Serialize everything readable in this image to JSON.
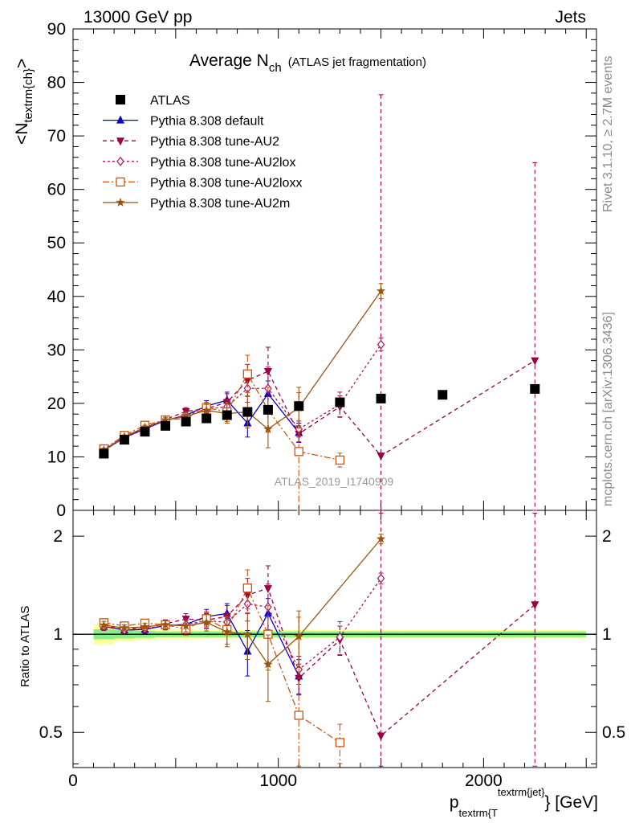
{
  "header": {
    "left": "13000 GeV pp",
    "right": "Jets"
  },
  "side_labels": {
    "rivet": "Rivet 3.1.10, ≥ 2.7M events",
    "mcplots": "mcplots.cern.ch [arXiv:1306.3436]"
  },
  "watermark": "ATLAS_2019_I1740909",
  "title": {
    "main": "Average N",
    "sub": "ch",
    "suffix": "(ATLAS jet fragmentation)"
  },
  "y_label": {
    "main": "<N",
    "sub": "textrm{ch}",
    "close": ">"
  },
  "ratio_label": "Ratio to ATLAS",
  "x_label": {
    "main": "p",
    "sub": "textrm{T",
    "sup": "textrm{jet}",
    "close": "} [GeV]"
  },
  "legend": [
    {
      "name": "ATLAS"
    },
    {
      "name": "Pythia 8.308 default"
    },
    {
      "name": "Pythia 8.308 tune-AU2"
    },
    {
      "name": "Pythia 8.308 tune-AU2lox"
    },
    {
      "name": "Pythia 8.308 tune-AU2loxx"
    },
    {
      "name": "Pythia 8.308 tune-AU2m"
    }
  ],
  "chart_data": {
    "type": "line",
    "xlim": [
      0,
      2550
    ],
    "ylim": [
      0,
      90
    ],
    "ratio_ylim_log": [
      0.39,
      2.4
    ],
    "x_ticks": [
      0,
      1000,
      2000
    ],
    "y_ticks": [
      0,
      10,
      20,
      30,
      40,
      50,
      60,
      70,
      80,
      90
    ],
    "ratio_ticks": [
      0.5,
      1,
      2
    ],
    "data": {
      "name": "ATLAS",
      "points": [
        {
          "x": 150,
          "y": 10.6
        },
        {
          "x": 250,
          "y": 13.2
        },
        {
          "x": 350,
          "y": 14.7
        },
        {
          "x": 450,
          "y": 15.8
        },
        {
          "x": 550,
          "y": 16.6
        },
        {
          "x": 650,
          "y": 17.2
        },
        {
          "x": 750,
          "y": 17.8
        },
        {
          "x": 850,
          "y": 18.4
        },
        {
          "x": 950,
          "y": 18.8
        },
        {
          "x": 1100,
          "y": 19.5
        },
        {
          "x": 1300,
          "y": 20.2
        },
        {
          "x": 1500,
          "y": 20.9
        },
        {
          "x": 1800,
          "y": 21.6
        },
        {
          "x": 2250,
          "y": 22.7
        }
      ]
    },
    "band": [
      {
        "x0": 100,
        "x1": 200,
        "inner": 0.035,
        "outer": 0.07
      },
      {
        "x0": 200,
        "x1": 300,
        "inner": 0.03,
        "outer": 0.05
      },
      {
        "x0": 300,
        "x1": 400,
        "inner": 0.025,
        "outer": 0.04
      },
      {
        "x0": 400,
        "x1": 500,
        "inner": 0.02,
        "outer": 0.035
      },
      {
        "x0": 500,
        "x1": 600,
        "inner": 0.02,
        "outer": 0.035
      },
      {
        "x0": 600,
        "x1": 700,
        "inner": 0.02,
        "outer": 0.03
      },
      {
        "x0": 700,
        "x1": 800,
        "inner": 0.02,
        "outer": 0.03
      },
      {
        "x0": 800,
        "x1": 900,
        "inner": 0.02,
        "outer": 0.03
      },
      {
        "x0": 900,
        "x1": 1000,
        "inner": 0.02,
        "outer": 0.03
      },
      {
        "x0": 1000,
        "x1": 1200,
        "inner": 0.02,
        "outer": 0.03
      },
      {
        "x0": 1200,
        "x1": 1400,
        "inner": 0.02,
        "outer": 0.03
      },
      {
        "x0": 1400,
        "x1": 1600,
        "inner": 0.02,
        "outer": 0.03
      },
      {
        "x0": 1600,
        "x1": 2000,
        "inner": 0.02,
        "outer": 0.03
      },
      {
        "x0": 2000,
        "x1": 2500,
        "inner": 0.02,
        "outer": 0.03
      }
    ],
    "series": [
      {
        "name": "Pythia 8.308 default",
        "color": "#0000cc",
        "dash": "",
        "marker": "triangle-up",
        "shift": 0,
        "points": [
          {
            "x": 150,
            "y": 11.2,
            "e": 0.3
          },
          {
            "x": 250,
            "y": 13.6,
            "e": 0.3
          },
          {
            "x": 350,
            "y": 15.2,
            "e": 0.4
          },
          {
            "x": 450,
            "y": 16.8,
            "e": 0.5
          },
          {
            "x": 550,
            "y": 17.8,
            "e": 0.7
          },
          {
            "x": 650,
            "y": 19.5,
            "e": 1.0
          },
          {
            "x": 750,
            "y": 20.6,
            "e": 1.5
          },
          {
            "x": 850,
            "y": 16.3,
            "e": 2.6
          },
          {
            "x": 950,
            "y": 21.8,
            "e": 2.4
          },
          {
            "x": 1100,
            "y": 14.5,
            "e": 1.8
          }
        ]
      },
      {
        "name": "Pythia 8.308 tune-AU2",
        "color": "#990044",
        "dash": "5,4",
        "marker": "triangle-down",
        "shift": 0,
        "points": [
          {
            "x": 150,
            "y": 11.2,
            "e": 0.3
          },
          {
            "x": 250,
            "y": 13.7,
            "e": 0.3
          },
          {
            "x": 350,
            "y": 15.4,
            "e": 0.4
          },
          {
            "x": 450,
            "y": 17.0,
            "e": 0.5
          },
          {
            "x": 550,
            "y": 18.5,
            "e": 0.7
          },
          {
            "x": 650,
            "y": 19.0,
            "e": 1.0
          },
          {
            "x": 750,
            "y": 20.2,
            "e": 1.6
          },
          {
            "x": 850,
            "y": 24.3,
            "e": 3.0
          },
          {
            "x": 950,
            "y": 26.0,
            "e": 4.5
          },
          {
            "x": 1100,
            "y": 14.3,
            "e": 1.5
          },
          {
            "x": 1300,
            "y": 19.4,
            "e": 2.0
          },
          {
            "x": 1500,
            "y": 10.2,
            "e": 67.5
          },
          {
            "x": 2250,
            "y": 28.0,
            "e": 37.0
          }
        ]
      },
      {
        "name": "Pythia 8.308 tune-AU2lox",
        "color": "#aa1166",
        "dash": "3,3",
        "marker": "diamond-open",
        "shift": 0,
        "points": [
          {
            "x": 150,
            "y": 11.2,
            "e": 0.3
          },
          {
            "x": 250,
            "y": 13.6,
            "e": 0.3
          },
          {
            "x": 350,
            "y": 15.3,
            "e": 0.4
          },
          {
            "x": 450,
            "y": 16.8,
            "e": 0.5
          },
          {
            "x": 550,
            "y": 17.8,
            "e": 0.7
          },
          {
            "x": 650,
            "y": 18.9,
            "e": 1.0
          },
          {
            "x": 750,
            "y": 19.4,
            "e": 1.4
          },
          {
            "x": 850,
            "y": 22.8,
            "e": 2.6
          },
          {
            "x": 950,
            "y": 22.8,
            "e": 4.0
          },
          {
            "x": 1100,
            "y": 15.2,
            "e": 1.5
          },
          {
            "x": 1300,
            "y": 19.8,
            "e": 2.3
          },
          {
            "x": 1500,
            "y": 31.0,
            "e": 1.2
          }
        ]
      },
      {
        "name": "Pythia 8.308 tune-AU2loxx",
        "color": "#cc5511",
        "dash": "8,3,2,3",
        "marker": "square-open",
        "shift": 0,
        "points": [
          {
            "x": 150,
            "y": 11.5,
            "e": 0.3
          },
          {
            "x": 250,
            "y": 14.0,
            "e": 0.3
          },
          {
            "x": 350,
            "y": 15.9,
            "e": 0.4
          },
          {
            "x": 450,
            "y": 16.9,
            "e": 0.5
          },
          {
            "x": 550,
            "y": 17.2,
            "e": 0.7
          },
          {
            "x": 650,
            "y": 19.2,
            "e": 1.0
          },
          {
            "x": 750,
            "y": 18.4,
            "e": 1.8
          },
          {
            "x": 850,
            "y": 25.5,
            "e": 3.5
          },
          {
            "x": 950,
            "y": 18.8,
            "e": 4.2
          },
          {
            "x": 1100,
            "y": 11.0,
            "e": 11.0
          },
          {
            "x": 1300,
            "y": 9.4,
            "e": 1.3
          }
        ]
      },
      {
        "name": "Pythia 8.308 tune-AU2m",
        "color": "#995511",
        "dash": "",
        "marker": "star",
        "shift": 0,
        "points": [
          {
            "x": 150,
            "y": 11.3,
            "e": 0.3
          },
          {
            "x": 250,
            "y": 13.8,
            "e": 0.3
          },
          {
            "x": 350,
            "y": 15.5,
            "e": 0.4
          },
          {
            "x": 450,
            "y": 16.9,
            "e": 0.5
          },
          {
            "x": 550,
            "y": 17.6,
            "e": 0.7
          },
          {
            "x": 650,
            "y": 18.7,
            "e": 1.1
          },
          {
            "x": 750,
            "y": 18.1,
            "e": 1.8
          },
          {
            "x": 850,
            "y": 18.4,
            "e": 3.0
          },
          {
            "x": 950,
            "y": 15.2,
            "e": 3.5
          },
          {
            "x": 1100,
            "y": 19.2,
            "e": 3.8
          },
          {
            "x": 1500,
            "y": 41.0,
            "e": 1.4
          }
        ]
      }
    ]
  }
}
